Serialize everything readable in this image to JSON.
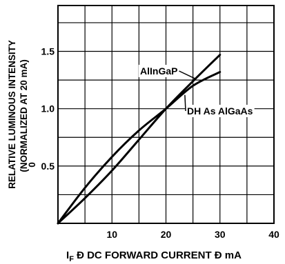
{
  "chart_data": {
    "type": "line",
    "title": "",
    "xlabel": "I",
    "xlabel_sub": "F",
    "xlabel_rest": " Ð DC FORWARD CURRENT Ð mA",
    "ylabel_line1": "RELATIVE LUMINOUS INTENSITY",
    "ylabel_line2": "(NORMALIZED AT 20 mA)",
    "ylabel_glyph": "0",
    "xlim": [
      0,
      40
    ],
    "ylim": [
      0,
      1.9
    ],
    "x_ticks": [
      0,
      10,
      20,
      30,
      40
    ],
    "x_tick_labels": [
      "10",
      "20",
      "30",
      "40"
    ],
    "y_ticks": [
      0.5,
      1.0,
      1.5
    ],
    "y_tick_labels": [
      "0.5",
      "1.0",
      "1.5"
    ],
    "x_grid": [
      0,
      5,
      10,
      15,
      20,
      25,
      30,
      35,
      40
    ],
    "y_grid": [
      0.25,
      0.5,
      0.75,
      1.0,
      1.25,
      1.5,
      1.75
    ],
    "grid": true,
    "series": [
      {
        "name": "AlInGaP",
        "x": [
          0,
          5,
          10,
          15,
          20,
          25,
          30
        ],
        "y": [
          0,
          0.22,
          0.46,
          0.73,
          1.0,
          1.24,
          1.47
        ]
      },
      {
        "name": "DH As AlGaAs",
        "x": [
          0,
          5,
          10,
          15,
          20,
          25,
          30
        ],
        "y": [
          0,
          0.31,
          0.58,
          0.81,
          1.0,
          1.2,
          1.32
        ]
      }
    ],
    "annotations": [
      "AlInGaP",
      "DH As AlGaAs"
    ]
  }
}
